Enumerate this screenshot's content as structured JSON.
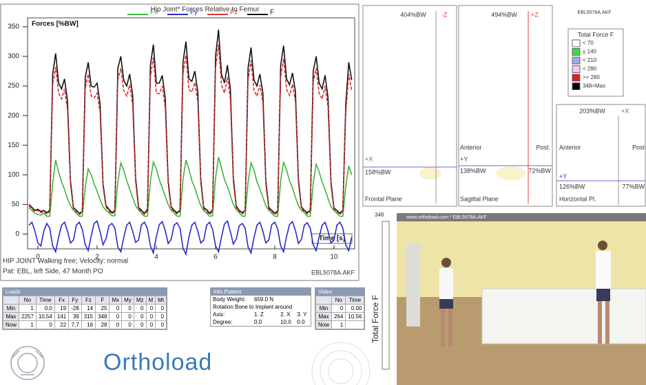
{
  "chart_data": {
    "type": "line",
    "title": "Hip Joint* Forces  Relative to Femur",
    "ylabel": "Forces  [%BW]",
    "xlabel": "Time  [s]",
    "x": [
      -0.3,
      -0.2,
      -0.1,
      0,
      0.1,
      0.2,
      0.3,
      0.4,
      0.5,
      0.6,
      0.7,
      0.8,
      0.9,
      1,
      1.1,
      1.2,
      1.3,
      1.4,
      1.5,
      1.6,
      1.7,
      1.8,
      1.9,
      2,
      2.1,
      2.2,
      2.3,
      2.4,
      2.5,
      2.6,
      2.7,
      2.8,
      2.9,
      3,
      3.1,
      3.2,
      3.3,
      3.4,
      3.5,
      3.6,
      3.7,
      3.8,
      3.9,
      4,
      4.1,
      4.2,
      4.3,
      4.4,
      4.5,
      4.6,
      4.7,
      4.8,
      4.9,
      5,
      5.1,
      5.2,
      5.3,
      5.4,
      5.5,
      5.6,
      5.7,
      5.8,
      5.9,
      6,
      6.1,
      6.2,
      6.3,
      6.4,
      6.5,
      6.6,
      6.7,
      6.8,
      6.9,
      7,
      7.1,
      7.2,
      7.3,
      7.4,
      7.5,
      7.6,
      7.7,
      7.8,
      7.9,
      8,
      8.1,
      8.2,
      8.3,
      8.4,
      8.5,
      8.6,
      8.7,
      8.8,
      8.9,
      9,
      9.1,
      9.2,
      9.3,
      9.4,
      9.5,
      9.6,
      9.7,
      9.8,
      9.9,
      10,
      10.1,
      10.2,
      10.3,
      10.4,
      10.5,
      10.6
    ],
    "series": [
      {
        "name": "Fx",
        "color": "#3cb43c",
        "values": [
          45,
          40,
          35,
          33,
          32,
          35,
          30,
          30,
          85,
          125,
          105,
          88,
          75,
          60,
          48,
          40,
          35,
          30,
          30,
          80,
          110,
          100,
          85,
          72,
          58,
          46,
          40,
          36,
          31,
          31,
          88,
          120,
          108,
          90,
          76,
          62,
          48,
          41,
          35,
          30,
          30,
          90,
          122,
          110,
          92,
          78,
          64,
          50,
          40,
          36,
          30,
          30,
          92,
          125,
          110,
          90,
          78,
          62,
          48,
          40,
          35,
          30,
          31,
          95,
          130,
          112,
          92,
          80,
          65,
          50,
          41,
          36,
          30,
          30,
          88,
          120,
          108,
          88,
          76,
          62,
          48,
          40,
          35,
          30,
          30,
          90,
          122,
          108,
          90,
          78,
          62,
          48,
          40,
          36,
          30,
          30,
          86,
          118,
          105,
          88,
          75,
          60,
          46,
          40,
          35,
          30,
          30,
          80,
          115,
          100
        ]
      },
      {
        "name": "Fy",
        "color": "#2828c8",
        "values": [
          15,
          20,
          5,
          -15,
          -20,
          5,
          18,
          10,
          -20,
          -30,
          -5,
          15,
          20,
          5,
          -15,
          -10,
          15,
          20,
          8,
          -18,
          -28,
          -3,
          18,
          22,
          4,
          -18,
          -8,
          14,
          18,
          10,
          -22,
          -30,
          -6,
          15,
          20,
          5,
          -14,
          -10,
          16,
          20,
          9,
          -20,
          -32,
          -4,
          16,
          21,
          6,
          -16,
          -9,
          15,
          19,
          10,
          -24,
          -34,
          -5,
          15,
          20,
          5,
          -15,
          -10,
          15,
          20,
          8,
          -20,
          -30,
          -5,
          17,
          22,
          4,
          -17,
          -8,
          14,
          18,
          10,
          -22,
          -32,
          -6,
          15,
          20,
          5,
          -15,
          -10,
          16,
          20,
          9,
          -20,
          -30,
          -4,
          16,
          21,
          6,
          -16,
          -9,
          15,
          19,
          10,
          -18,
          -28,
          -5,
          15,
          20,
          5,
          -15,
          -10,
          15,
          20,
          10,
          -18,
          -28,
          -5
        ]
      },
      {
        "name": "Fz",
        "color": "#d83030",
        "values": [
          48,
          43,
          38,
          40,
          36,
          38,
          34,
          38,
          252,
          282,
          238,
          228,
          245,
          210,
          84,
          42,
          38,
          33,
          36,
          246,
          270,
          233,
          230,
          238,
          205,
          80,
          45,
          39,
          34,
          38,
          260,
          280,
          242,
          233,
          252,
          218,
          88,
          42,
          38,
          33,
          39,
          265,
          298,
          238,
          237,
          250,
          214,
          84,
          43,
          38,
          34,
          38,
          270,
          302,
          244,
          240,
          256,
          224,
          86,
          42,
          38,
          33,
          38,
          280,
          320,
          252,
          238,
          265,
          228,
          88,
          44,
          38,
          34,
          38,
          260,
          293,
          242,
          233,
          252,
          222,
          84,
          42,
          38,
          33,
          37,
          265,
          296,
          244,
          234,
          253,
          224,
          86,
          43,
          38,
          34,
          38,
          256,
          280,
          238,
          228,
          250,
          214,
          82,
          41,
          38,
          33,
          38,
          205,
          270,
          242
        ]
      },
      {
        "name": "F",
        "color": "#101010",
        "values": [
          50,
          45,
          40,
          42,
          38,
          40,
          36,
          40,
          270,
          305,
          255,
          245,
          262,
          225,
          90,
          45,
          40,
          35,
          38,
          265,
          290,
          250,
          248,
          255,
          220,
          85,
          48,
          42,
          36,
          40,
          280,
          300,
          260,
          250,
          270,
          235,
          95,
          45,
          40,
          35,
          42,
          285,
          320,
          255,
          255,
          268,
          230,
          90,
          46,
          40,
          36,
          40,
          290,
          325,
          262,
          258,
          275,
          240,
          92,
          45,
          41,
          35,
          41,
          300,
          345,
          270,
          255,
          285,
          245,
          95,
          47,
          40,
          36,
          40,
          280,
          315,
          260,
          250,
          270,
          238,
          90,
          45,
          40,
          35,
          39,
          285,
          318,
          262,
          252,
          272,
          240,
          92,
          46,
          40,
          36,
          40,
          275,
          300,
          255,
          245,
          268,
          230,
          88,
          44,
          40,
          35,
          40,
          220,
          290,
          260
        ]
      }
    ],
    "xlim": [
      -0.35,
      10.7
    ],
    "ylim": [
      -25,
      365
    ],
    "xticks": [
      0,
      2,
      4,
      6,
      8,
      10
    ],
    "yticks": [
      0,
      50,
      100,
      150,
      200,
      250,
      300,
      350
    ],
    "grid": false
  },
  "chart_info": {
    "activity": "HIP JOINT Walking free; Velocity: normal",
    "patient": "Pat: EBL, left Side, 47 Month PO",
    "file": "EBL5078A.AKF"
  },
  "frontal": {
    "top": "404%BW",
    "axis_top": "-Z",
    "axis_side": "+X",
    "value": "158%BW",
    "label": "Frontal Plane"
  },
  "sagittal": {
    "top": "494%BW",
    "axis_top": "+Z",
    "anterior": "Anterior",
    "posterior": "Post.",
    "axis_side": "+Y",
    "value_left": "138%BW",
    "value_right": "72%BW",
    "label": "Sagittal Plane"
  },
  "horizontal": {
    "top": "203%BW",
    "axis_top": "+X",
    "anterior": "Anterior",
    "posterior": "Post",
    "axis_side": "+Y",
    "value_left": "126%BW",
    "value_right": "77%BW",
    "label": "Horizontal Pl."
  },
  "color_legend": {
    "file": "EBL5078A.AKF",
    "title": "Total Force F",
    "items": [
      {
        "label": "< 70",
        "color": "#ffffff"
      },
      {
        "label": "≤ 140",
        "color": "#3cdc3c"
      },
      {
        "label": "< 210",
        "color": "#a0a8f0"
      },
      {
        "label": "< 280",
        "color": "#f4c8f0"
      },
      {
        "label": ">= 280",
        "color": "#e02020"
      },
      {
        "label": "348=Max",
        "color": "#000000"
      }
    ]
  },
  "loads_table": {
    "title": "Loads",
    "columns": [
      "No",
      "Time",
      "Fx",
      "Fy",
      "Fz",
      "F",
      "Mx",
      "My",
      "Mz",
      "M",
      "Mt"
    ],
    "rows": [
      {
        "label": "Min",
        "cells": [
          "1",
          "0,0",
          "19",
          "-28",
          "14",
          "25",
          "0",
          "0",
          "0",
          "0",
          "0"
        ]
      },
      {
        "label": "Max",
        "cells": [
          "2257",
          "10,54",
          "141",
          "39",
          "315",
          "348",
          "0",
          "0",
          "0",
          "0",
          "0"
        ]
      },
      {
        "label": "Now",
        "cells": [
          "1",
          "0",
          "22",
          "7,7",
          "16",
          "28",
          "0",
          "0",
          "0",
          "0",
          "0"
        ]
      }
    ]
  },
  "patient_info": {
    "title": "Info Patient",
    "rows": [
      [
        "Body Weight:",
        "659.0 N"
      ],
      [
        "Rotation Bone to Implant around"
      ],
      [
        "Axis:",
        "1. Z",
        "2. X",
        "3. Y"
      ],
      [
        "Degree:",
        "0.0",
        "10.0",
        "0.0"
      ]
    ]
  },
  "video_table": {
    "title": "Video",
    "columns": [
      "No",
      "Time"
    ],
    "rows": [
      {
        "label": "Min",
        "cells": [
          "0",
          "0.00"
        ]
      },
      {
        "label": "Max",
        "cells": [
          "264",
          "10.56"
        ]
      },
      {
        "label": "Now",
        "cells": [
          "1"
        ]
      }
    ]
  },
  "logo": "Orthoload",
  "video": {
    "max": "348",
    "axis_label": "Total Force F",
    "caption": "www.orthoload.com * EBL5078A.AKF"
  }
}
